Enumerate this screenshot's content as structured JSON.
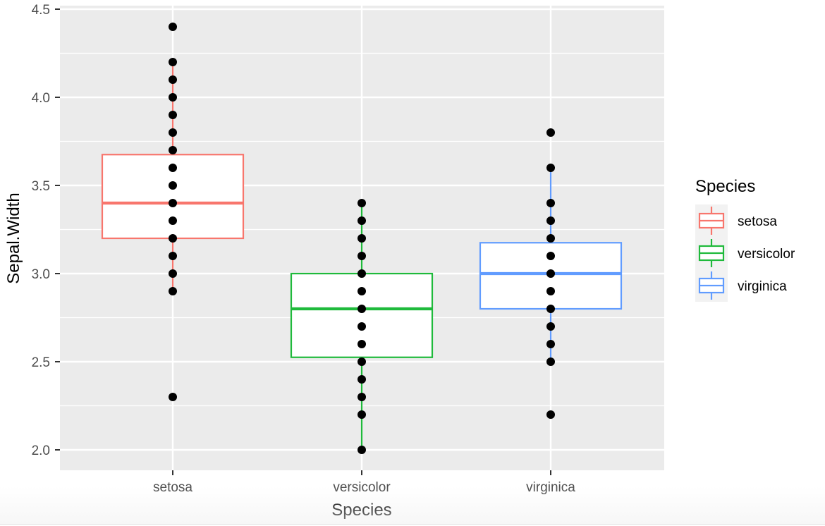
{
  "chart_data": {
    "type": "boxplot",
    "title": "",
    "xlabel": "Species",
    "ylabel": "Sepal.Width",
    "categories": [
      "setosa",
      "versicolor",
      "virginica"
    ],
    "ylim": [
      1.88,
      4.52
    ],
    "yticks": [
      2.0,
      2.5,
      3.0,
      3.5,
      4.0,
      4.5
    ],
    "ytick_labels": [
      "2.0",
      "2.5",
      "3.0",
      "3.5",
      "4.0",
      "4.5"
    ],
    "grid": true,
    "legend": {
      "title": "Species",
      "placement": "right",
      "entries": [
        "setosa",
        "versicolor",
        "virginica"
      ]
    },
    "colors": {
      "setosa": "#F8766D",
      "versicolor": "#1FBA3B",
      "virginica": "#619CFF",
      "panel": "#EBEBEB",
      "grid": "#FFFFFF",
      "points": "#000000"
    },
    "boxes": [
      {
        "name": "setosa",
        "whisker_low": 2.9,
        "q1": 3.2,
        "median": 3.4,
        "q3": 3.675,
        "whisker_high": 4.2,
        "outliers": [
          4.4,
          2.3
        ]
      },
      {
        "name": "versicolor",
        "whisker_low": 2.0,
        "q1": 2.525,
        "median": 2.8,
        "q3": 3.0,
        "whisker_high": 3.4,
        "outliers": []
      },
      {
        "name": "virginica",
        "whisker_low": 2.5,
        "q1": 2.8,
        "median": 3.0,
        "q3": 3.175,
        "whisker_high": 3.6,
        "outliers": [
          3.8,
          2.2
        ]
      }
    ],
    "points": [
      {
        "name": "setosa",
        "values": [
          4.4,
          4.2,
          4.1,
          4.0,
          3.9,
          3.8,
          3.7,
          3.6,
          3.5,
          3.4,
          3.3,
          3.2,
          3.1,
          3.0,
          2.9,
          2.3
        ]
      },
      {
        "name": "versicolor",
        "values": [
          3.4,
          3.3,
          3.2,
          3.1,
          3.0,
          2.9,
          2.8,
          2.7,
          2.6,
          2.5,
          2.4,
          2.3,
          2.2,
          2.0
        ]
      },
      {
        "name": "virginica",
        "values": [
          3.8,
          3.6,
          3.4,
          3.3,
          3.2,
          3.1,
          3.0,
          2.9,
          2.8,
          2.7,
          2.6,
          2.5,
          2.2
        ]
      }
    ]
  }
}
